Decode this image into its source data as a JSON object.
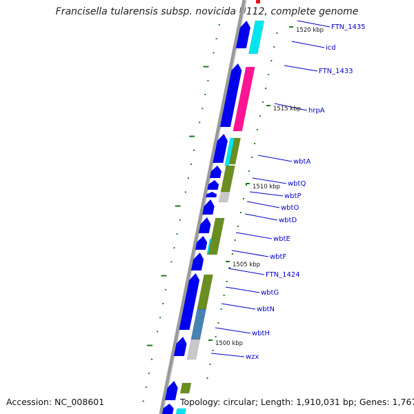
{
  "title": "Francisella tularensis subsp. novicida U112, complete genome",
  "footer": {
    "accession": "Accession: NC_008601",
    "topology": "Topology: circular; Length: 1,910,031 bp; Genes: 1,767"
  },
  "genome": {
    "length_bp": 1910031,
    "gene_count": 1767,
    "kbp_markers": [
      "1520 kbp",
      "1515 kbp",
      "1510 kbp",
      "1505 kbp",
      "1500 kbp"
    ],
    "gene_labels": [
      "FTN_1435",
      "icd",
      "FTN_1433",
      "hrpA",
      "wbtA",
      "wbtQ",
      "wbtP",
      "wbtO",
      "wbtD",
      "wbtE",
      "wbtF",
      "FTN_1424",
      "wbtG",
      "wbtN",
      "wbtH",
      "wzx"
    ]
  },
  "colors": {
    "backbone": "#9a9a9a",
    "cds": "#0000ee",
    "tick": "#1a7a1a",
    "label": "#0000cc",
    "cog_magenta": "#ff1493",
    "cog_cyan": "#00e5ee",
    "cog_olive": "#6b8e23",
    "cog_steelblue": "#4682b4",
    "cog_gray": "#c8c8c8"
  }
}
